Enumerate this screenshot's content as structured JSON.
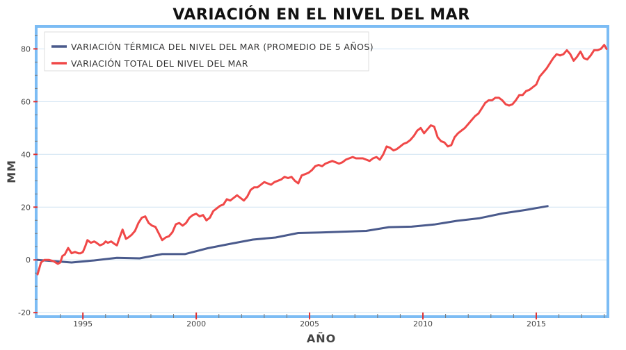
{
  "chart_data": {
    "type": "line",
    "title": "VARIACIÓN EN EL NIVEL DEL MAR",
    "xlabel": "AÑO",
    "ylabel": "MM",
    "xlim": [
      1993.0,
      2018.1
    ],
    "ylim": [
      -21,
      88
    ],
    "x_ticks": [
      1995,
      2000,
      2005,
      2010,
      2015
    ],
    "y_ticks": [
      -20,
      0,
      20,
      40,
      60,
      80
    ],
    "grid": "horizontal",
    "legend_position": "top-left",
    "series": [
      {
        "name": "VARIACIÓN TÉRMICA DEL NIVEL DEL MAR (PROMEDIO DE 5 AÑOS)",
        "color": "#4a5a8c",
        "x": [
          1993.0,
          1994.5,
          1995.5,
          1996.5,
          1997.5,
          1998.5,
          1999.5,
          2000.5,
          2001.5,
          2002.5,
          2003.5,
          2004.5,
          2005.5,
          2006.5,
          2007.5,
          2008.5,
          2009.5,
          2010.5,
          2011.5,
          2012.5,
          2013.5,
          2014.5,
          2015.5
        ],
        "y": [
          0.0,
          -1.0,
          -0.2,
          0.8,
          0.6,
          2.2,
          2.2,
          4.4,
          6.1,
          7.7,
          8.5,
          10.2,
          10.4,
          10.7,
          11.0,
          12.4,
          12.6,
          13.4,
          14.8,
          15.8,
          17.6,
          18.9,
          20.4
        ]
      },
      {
        "name": "VARIACIÓN TOTAL DEL NIVEL DEL MAR",
        "color": "#f04848",
        "x": [
          1993.0,
          1993.15,
          1993.3,
          1993.5,
          1993.7,
          1993.9,
          1994.0,
          1994.1,
          1994.2,
          1994.35,
          1994.5,
          1994.65,
          1994.8,
          1994.9,
          1995.0,
          1995.1,
          1995.2,
          1995.35,
          1995.5,
          1995.6,
          1995.75,
          1995.9,
          1996.0,
          1996.1,
          1996.25,
          1996.4,
          1996.5,
          1996.6,
          1996.75,
          1996.9,
          1997.0,
          1997.15,
          1997.3,
          1997.45,
          1997.6,
          1997.75,
          1997.9,
          1998.05,
          1998.2,
          1998.35,
          1998.5,
          1998.65,
          1998.8,
          1998.95,
          1999.1,
          1999.25,
          1999.4,
          1999.55,
          1999.7,
          1999.85,
          2000.0,
          2000.15,
          2000.3,
          2000.45,
          2000.6,
          2000.75,
          2000.9,
          2001.05,
          2001.2,
          2001.35,
          2001.5,
          2001.65,
          2001.8,
          2001.95,
          2002.1,
          2002.25,
          2002.4,
          2002.55,
          2002.7,
          2002.85,
          2003.0,
          2003.15,
          2003.3,
          2003.45,
          2003.6,
          2003.75,
          2003.9,
          2004.05,
          2004.2,
          2004.35,
          2004.5,
          2004.65,
          2004.8,
          2004.95,
          2005.1,
          2005.25,
          2005.4,
          2005.55,
          2005.7,
          2005.85,
          2006.0,
          2006.15,
          2006.3,
          2006.45,
          2006.6,
          2006.75,
          2006.9,
          2007.05,
          2007.2,
          2007.35,
          2007.5,
          2007.65,
          2007.8,
          2007.95,
          2008.1,
          2008.25,
          2008.4,
          2008.55,
          2008.7,
          2008.85,
          2009.0,
          2009.15,
          2009.3,
          2009.45,
          2009.6,
          2009.75,
          2009.9,
          2010.05,
          2010.2,
          2010.35,
          2010.5,
          2010.65,
          2010.8,
          2010.95,
          2011.1,
          2011.25,
          2011.4,
          2011.55,
          2011.7,
          2011.85,
          2012.0,
          2012.15,
          2012.3,
          2012.45,
          2012.6,
          2012.75,
          2012.9,
          2013.05,
          2013.2,
          2013.35,
          2013.5,
          2013.65,
          2013.8,
          2013.95,
          2014.1,
          2014.25,
          2014.4,
          2014.55,
          2014.7,
          2014.85,
          2015.0,
          2015.15,
          2015.3,
          2015.45,
          2015.6,
          2015.75,
          2015.9,
          2016.05,
          2016.2,
          2016.35,
          2016.5,
          2016.65,
          2016.8,
          2016.95,
          2017.1,
          2017.25,
          2017.4,
          2017.55,
          2017.7,
          2017.85,
          2018.0,
          2018.1
        ],
        "y": [
          -5.5,
          -1.0,
          0.0,
          0.0,
          -0.5,
          -1.5,
          -1.0,
          1.5,
          2.0,
          4.5,
          2.5,
          3.0,
          2.5,
          2.5,
          3.0,
          5.0,
          7.5,
          6.5,
          7.0,
          6.5,
          5.5,
          6.0,
          7.0,
          6.5,
          7.0,
          6.0,
          5.5,
          8.0,
          11.5,
          8.0,
          8.5,
          9.5,
          11.0,
          14.0,
          16.0,
          16.5,
          14.0,
          13.0,
          12.5,
          10.0,
          7.5,
          8.5,
          9.0,
          10.5,
          13.5,
          14.0,
          13.0,
          14.0,
          16.0,
          17.0,
          17.5,
          16.5,
          17.0,
          15.0,
          16.0,
          18.5,
          19.5,
          20.5,
          21.0,
          23.0,
          22.5,
          23.5,
          24.5,
          23.5,
          22.5,
          24.0,
          26.5,
          27.5,
          27.5,
          28.5,
          29.5,
          29.0,
          28.5,
          29.5,
          30.0,
          30.5,
          31.5,
          31.0,
          31.5,
          30.0,
          29.0,
          32.0,
          32.5,
          33.0,
          34.0,
          35.5,
          36.0,
          35.5,
          36.5,
          37.0,
          37.5,
          37.0,
          36.5,
          37.0,
          38.0,
          38.5,
          39.0,
          38.5,
          38.5,
          38.5,
          38.0,
          37.5,
          38.5,
          39.0,
          38.0,
          40.0,
          43.0,
          42.5,
          41.5,
          42.0,
          43.0,
          44.0,
          44.5,
          45.5,
          47.0,
          49.0,
          50.0,
          48.0,
          49.5,
          51.0,
          50.5,
          46.5,
          45.0,
          44.5,
          43.0,
          43.5,
          46.5,
          48.0,
          49.0,
          50.0,
          51.5,
          53.0,
          54.5,
          55.5,
          57.5,
          59.5,
          60.5,
          60.5,
          61.5,
          61.5,
          60.5,
          59.0,
          58.5,
          59.0,
          60.5,
          62.5,
          62.5,
          64.0,
          64.5,
          65.5,
          66.5,
          69.5,
          71.0,
          72.5,
          74.5,
          76.5,
          78.0,
          77.5,
          78.0,
          79.5,
          78.0,
          75.5,
          77.0,
          79.0,
          76.5,
          76.0,
          77.5,
          79.5,
          79.5,
          80.0,
          81.5,
          80.0
        ]
      }
    ]
  }
}
